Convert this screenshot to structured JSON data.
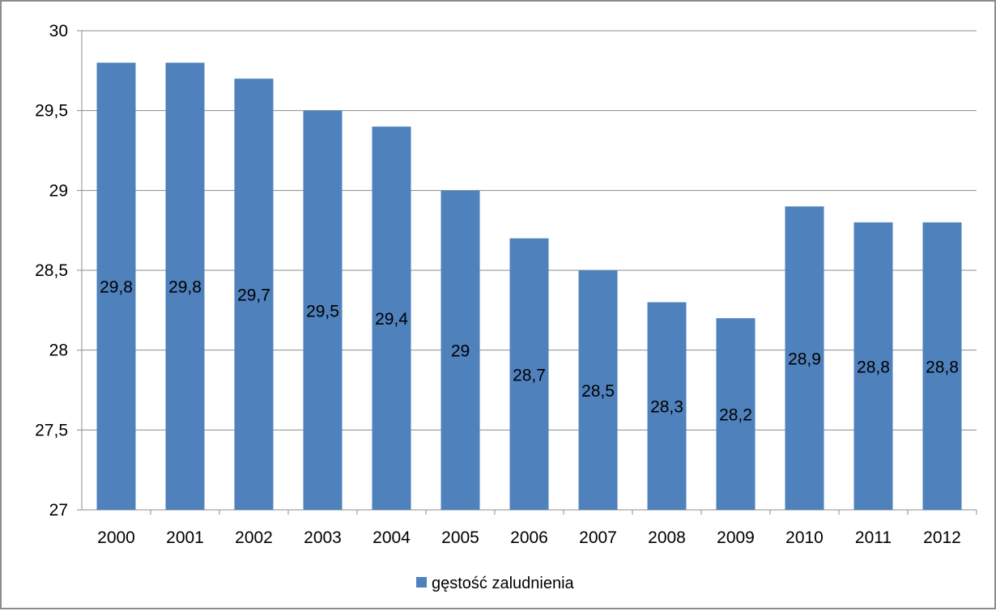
{
  "chart_data": {
    "type": "bar",
    "categories": [
      "2000",
      "2001",
      "2002",
      "2003",
      "2004",
      "2005",
      "2006",
      "2007",
      "2008",
      "2009",
      "2010",
      "2011",
      "2012"
    ],
    "series": [
      {
        "name": "gęstość zaludnienia",
        "values": [
          29.8,
          29.8,
          29.7,
          29.5,
          29.4,
          29,
          28.7,
          28.5,
          28.3,
          28.2,
          28.9,
          28.8,
          28.8
        ],
        "data_labels": [
          "29,8",
          "29,8",
          "29,7",
          "29,5",
          "29,4",
          "29",
          "28,7",
          "28,5",
          "28,3",
          "28,2",
          "28,9",
          "28,8",
          "28,8"
        ],
        "color": "#4f81bd"
      }
    ],
    "ylim": [
      27,
      30
    ],
    "y_ticks": [
      27,
      27.5,
      28,
      28.5,
      29,
      29.5,
      30
    ],
    "y_tick_labels": [
      "27",
      "27,5",
      "28",
      "28,5",
      "29",
      "29,5",
      "30"
    ],
    "grid": true,
    "gridline_color": "#8c8c8c",
    "legend": {
      "position": "bottom",
      "entries": [
        "gęstość zaludnienia"
      ]
    },
    "title": "",
    "xlabel": "",
    "ylabel": ""
  }
}
